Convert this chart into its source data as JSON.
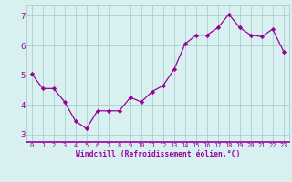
{
  "x": [
    0,
    1,
    2,
    3,
    4,
    5,
    6,
    7,
    8,
    9,
    10,
    11,
    12,
    13,
    14,
    15,
    16,
    17,
    18,
    19,
    20,
    21,
    22,
    23
  ],
  "y": [
    5.05,
    4.55,
    4.55,
    4.1,
    3.45,
    3.2,
    3.8,
    3.8,
    3.8,
    4.25,
    4.1,
    4.45,
    4.65,
    5.2,
    6.05,
    6.35,
    6.35,
    6.6,
    7.05,
    6.6,
    6.35,
    6.3,
    6.55,
    5.8
  ],
  "line_color": "#990099",
  "marker": "D",
  "marker_size": 2.2,
  "bg_color": "#d8f0f0",
  "grid_color": "#aacece",
  "xlabel": "Windchill (Refroidissement éolien,°C)",
  "xlabel_color": "#990099",
  "tick_color": "#990099",
  "xlim": [
    -0.5,
    23.5
  ],
  "ylim": [
    2.75,
    7.35
  ],
  "yticks": [
    3,
    4,
    5,
    6,
    7
  ],
  "xticks": [
    0,
    1,
    2,
    3,
    4,
    5,
    6,
    7,
    8,
    9,
    10,
    11,
    12,
    13,
    14,
    15,
    16,
    17,
    18,
    19,
    20,
    21,
    22,
    23
  ]
}
